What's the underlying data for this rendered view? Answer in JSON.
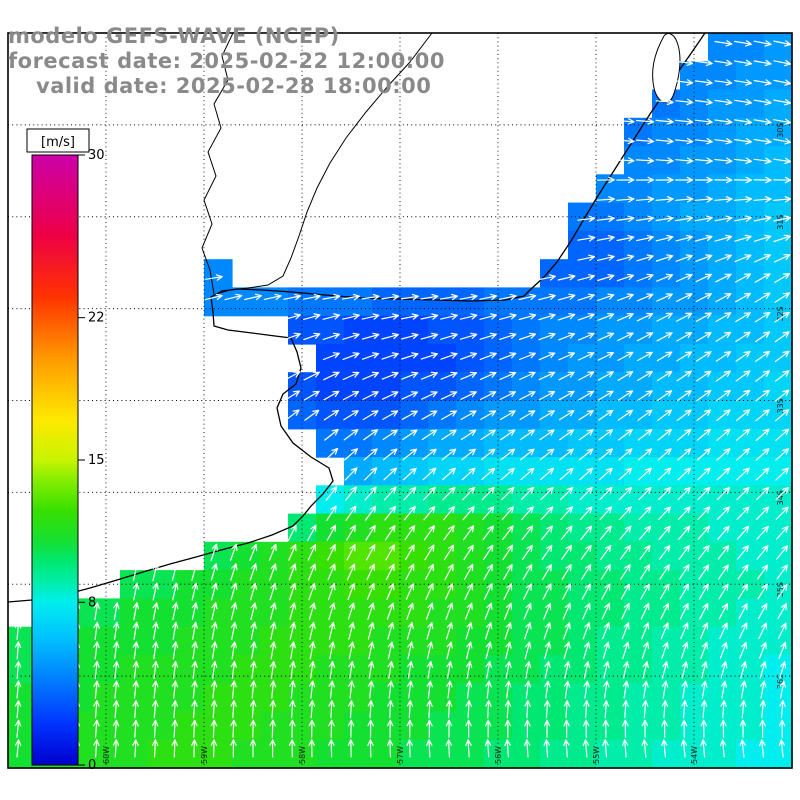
{
  "page": {
    "background": "#ffffff"
  },
  "title": {
    "line1": "modelo GEFS-WAVE (NCEP)",
    "line2": "forecast date: 2025-02-22 12:00:00",
    "line3": "valid date: 2025-02-28 18:00:00",
    "color": "#8a8a8a"
  },
  "colorbar": {
    "unit_label": "[m/s]",
    "ticks": [
      30,
      22,
      15,
      8,
      0
    ],
    "min": 0,
    "max": 30
  },
  "map": {
    "lon_labels": [
      "60W",
      "59W",
      "58W",
      "57W",
      "56W",
      "55W",
      "54W"
    ],
    "lat_labels": [
      "30S",
      "31S",
      "32S",
      "33S",
      "34S",
      "35S",
      "36S"
    ]
  },
  "chart_data": {
    "type": "heatmap",
    "title": "modelo GEFS-WAVE (NCEP)",
    "variable": "wind speed with direction arrows",
    "units": "m/s",
    "value_range": [
      0,
      30
    ],
    "colorbar_ticks": [
      30,
      22,
      15,
      8,
      0
    ],
    "arrow_color": "#ffffff",
    "palette_stops": [
      [
        0,
        "#0000cc"
      ],
      [
        2,
        "#0033ff"
      ],
      [
        4,
        "#0077ff"
      ],
      [
        6,
        "#00bbff"
      ],
      [
        8,
        "#00eeee"
      ],
      [
        9,
        "#00eeaa"
      ],
      [
        10,
        "#00e872"
      ],
      [
        11,
        "#14e032"
      ],
      [
        12.5,
        "#38e000"
      ],
      [
        14,
        "#84ee00"
      ],
      [
        15,
        "#c8f400"
      ],
      [
        17,
        "#ffe800"
      ],
      [
        20,
        "#ff9900"
      ],
      [
        23,
        "#ff3300"
      ],
      [
        26,
        "#ee0044"
      ],
      [
        30,
        "#cc00aa"
      ]
    ],
    "grid_cols": 28,
    "grid_rows": 26,
    "land_token": "-",
    "speed_rows": [
      "- - - - - - - - - - - - - - - - - - - - - - - - - 4.5 4.5 5",
      "- - - - - - - - - - - - - - - - - - - - - - - - 4.5 4.5 5 5",
      "- - - - - - - - - - - - - - - - - - - - - - - 4 4.5 5 5 5.5",
      "- - - - - - - - - - - - - - - - - - - - - - 4 4.5 4.5 5 5.5 5.5",
      "- - - - - - - - - - - - - - - - - - - - - - 4.5 4.5 5 5 5.5 6",
      "- - - - - - - - - - - - - - - - - - - - - 4.5 4.5 5 5 5.5 6 6",
      "- - - - - - - - - - - - - - - - - - - - 4 4 4.5 5 5.5 5.5 6 6.5",
      "- - - - - - - - - - - - - - - - - - - - 3.5 3.5 4 4.5 5 5.5 6 6.5",
      "- - - - - - - 4.5 - - - - - - - - - - - 3.5 3.5 3.5 4 4.5 5 5.5 6 6.5",
      "- - - - - - - 4.5 4.5 4.5 4 4 4 3.5 3.5 3.5 3.5 4 4 4 4 4.5 4.5 5 5 5.5 6 6.5",
      "- - - - - - - - - - 3 3 2.5 2.5 2.5 3 3 3.5 4 4.5 4.5 5 5 5.5 5.5 6 6 6.5",
      "- - - - - - - - - - - 2.5 2.5 2.5 2.5 2.5 3 3.5 4 4.5 5 5 5.5 5.5 6 6 6.5 6.5",
      "- - - - - - - - - - 3 2.5 2.5 2.5 3 3 3.5 4 4.5 5 5 5.5 5.5 6 6 6.5 6.5 7",
      "- - - - - - - - - - 3.5 3 3 3 3.5 4 4.5 5 5 5.5 5.5 6 6 6.5 6.5 7 7 7",
      "- - - - - - - - - - - 4 4 4.5 5 5.5 5.5 6 6 6 6.5 6.5 7 7 7 7.5 7.5 7.5",
      "- - - - - - - - - - - - 5.5 6 6.5 7 7 7.5 7.5 7.5 7.5 7.5 8 8 8 8 8 8",
      "- - - - - - - - - - - 8 8.5 9 9 9.5 9.5 9.5 9 9 8.5 8.5 8.5 8.5 8.5 8.5 8.5 8.5",
      "- - - - - - - - - - 10 11 11.5 12 12 12 11.5 11 10.5 10 9.5 9.5 9 9 9 8.5 8.5 8.5",
      "- - - - - - - 10.5 11 11.5 12 12.5 13 13 12.5 12 11.5 11 10.5 10 10 9.5 9.5 9 9 9 8.5 8.5",
      "- - - - 10.5 10.5 11 11 11.5 11.5 12 12 12.5 12.5 12 12 11.5 11 10.5 10.5 10 10 9.5 9.5 9 9 9 8.5",
      "- 10.5 10.5 10.5 11 11 11 11.5 11.5 11.5 12 12 12 12 12 11.5 11.5 11 10.5 10.5 10 10 9.5 9.5 9 9 8.5 8.5",
      "10.5 10.5 11 11 11 11 11.5 11.5 11.5 12 12 12 12 11.5 11.5 11.5 11 11 10.5 10.5 10 9.5 9.5 9 9 8.5 8.5 8.5",
      "10.5 11 11 11 11.5 11.5 11.5 11.5 12 12 12 11.5 11.5 11.5 11 11 11 10.5 10.5 10 10 9.5 9.5 9 9 8.5 8.5 8",
      "11 11 11 11.5 11.5 11.5 11.5 12 12 12 11.5 11.5 11.5 11 11 11 10.5 10.5 10 10 9.5 9.5 9 9 8.5 8.5 8.5 8",
      "11 11 11.5 11.5 11.5 11.5 12 12 12 11.5 11.5 11.5 11 11 11 10.5 10.5 10.5 10 10 9.5 9.5 9 9 8.5 8.5 8.5 8",
      "11 11.5 11.5 11.5 11.5 12 12 12 11.5 11.5 11.5 11 11 11 10.5 10.5 10.5 10 10 9.5 9.5 9 9 8.5 8.5 8.5 8 8"
    ],
    "direction_deg_grid": [
      [
        90,
        90,
        90,
        90,
        92,
        96,
        102
      ],
      [
        85,
        85,
        85,
        86,
        90,
        95,
        100
      ],
      [
        78,
        80,
        82,
        85,
        80,
        68,
        58
      ],
      [
        38,
        44,
        55,
        65,
        62,
        55,
        50
      ],
      [
        10,
        16,
        26,
        36,
        40,
        42,
        44
      ],
      [
        4,
        8,
        10,
        13,
        16,
        20,
        24
      ],
      [
        6,
        2,
        -2,
        -5,
        -8,
        -10,
        -12
      ]
    ]
  }
}
